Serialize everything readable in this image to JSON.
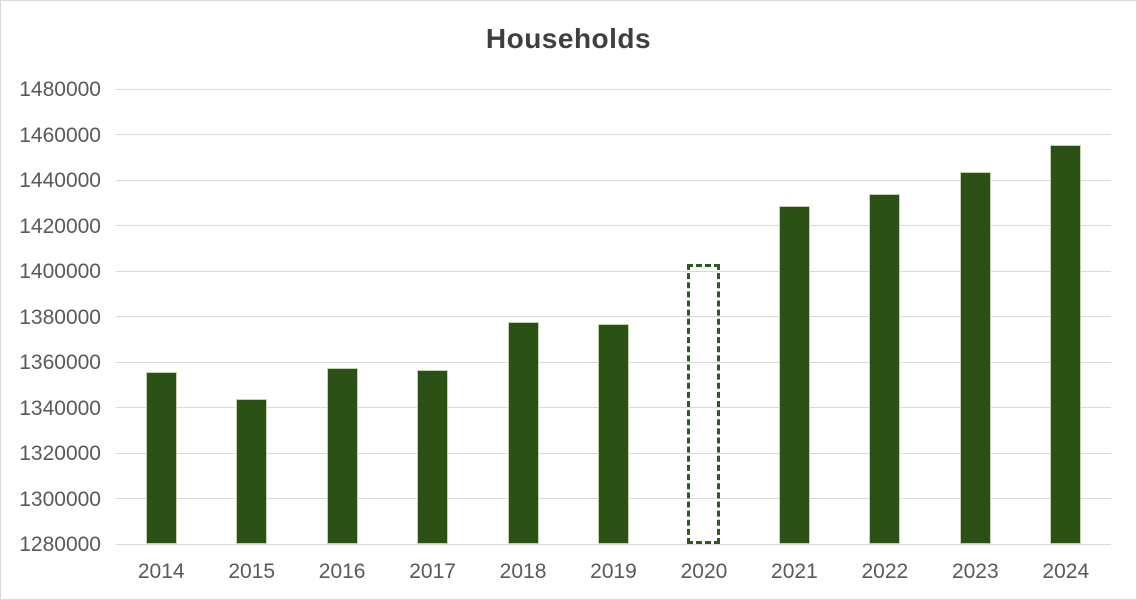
{
  "chart_data": {
    "type": "bar",
    "title": "Households",
    "categories": [
      "2014",
      "2015",
      "2016",
      "2017",
      "2018",
      "2019",
      "2020",
      "2021",
      "2022",
      "2023",
      "2024"
    ],
    "values": [
      1355700,
      1343800,
      1357400,
      1356500,
      1377600,
      1376700,
      1403100,
      1428700,
      1433800,
      1443500,
      1455500
    ],
    "dashed_category": "2020",
    "xlabel": "",
    "ylabel": "",
    "ylim": [
      1280000,
      1480000
    ],
    "y_tick_step": 20000,
    "y_tick_labels": [
      "1480000",
      "1460000",
      "1440000",
      "1420000",
      "1400000",
      "1380000",
      "1360000",
      "1340000",
      "1320000",
      "1300000",
      "1280000"
    ],
    "grid": "horizontal",
    "legend": "none",
    "colors": {
      "bar_fill": "#2B5116",
      "bar_edge": "#C3D2B3",
      "dashed_edge": "#2E5A1C",
      "gridline": "#D9D9D9",
      "axis_text": "#595959",
      "title_text": "#3F3F3F",
      "background": "#FFFFFF",
      "chart_border": "#D9D9D9"
    }
  }
}
